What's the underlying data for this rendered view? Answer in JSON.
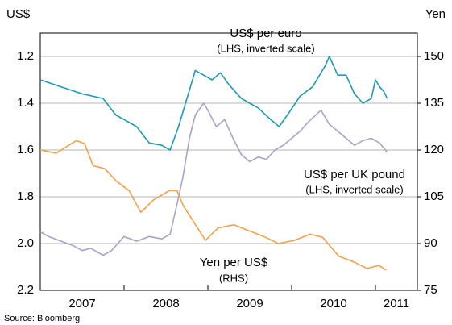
{
  "chart_data": {
    "type": "line",
    "y_axis_label": "US$",
    "y2_axis_label": "Yen",
    "source": "Source: Bloomberg",
    "xlim": [
      2007,
      2011.5
    ],
    "xticks": [
      2007,
      2008,
      2009,
      2010,
      2011
    ],
    "ylim": [
      1.1,
      2.2
    ],
    "y_inverted": true,
    "yticks": [
      1.2,
      1.4,
      1.6,
      1.8,
      {
        "value": 2,
        "label": "2.0"
      },
      2.2
    ],
    "y2lim": [
      75,
      157.5
    ],
    "y2ticks": [
      75,
      90,
      105,
      120,
      135,
      150
    ],
    "grid": true,
    "series": [
      {
        "name": "US$ per euro",
        "note": "(LHS, inverted scale)",
        "color": "#1a9bb5",
        "axis": "y",
        "x": [
          2007.0,
          2007.25,
          2007.5,
          2007.75,
          2007.9,
          2008.0,
          2008.15,
          2008.3,
          2008.45,
          2008.55,
          2008.65,
          2008.75,
          2008.85,
          2008.95,
          2009.05,
          2009.15,
          2009.25,
          2009.4,
          2009.5,
          2009.6,
          2009.75,
          2009.85,
          2009.95,
          2010.1,
          2010.25,
          2010.4,
          2010.45,
          2010.55,
          2010.65,
          2010.75,
          2010.85,
          2010.95,
          2011.0,
          2011.05,
          2011.1,
          2011.14
        ],
        "values": [
          1.3,
          1.33,
          1.36,
          1.38,
          1.45,
          1.47,
          1.5,
          1.57,
          1.58,
          1.6,
          1.5,
          1.38,
          1.26,
          1.28,
          1.3,
          1.27,
          1.32,
          1.38,
          1.4,
          1.42,
          1.47,
          1.5,
          1.45,
          1.37,
          1.33,
          1.24,
          1.2,
          1.28,
          1.28,
          1.36,
          1.4,
          1.38,
          1.3,
          1.33,
          1.35,
          1.38
        ]
      },
      {
        "name": "US$ per UK pound",
        "note": "(LHS, inverted scale)",
        "color": "#a9a3cc",
        "axis": "y",
        "x": [
          2007.0,
          2007.1,
          2007.25,
          2007.4,
          2007.5,
          2007.6,
          2007.75,
          2007.85,
          2008.0,
          2008.15,
          2008.3,
          2008.45,
          2008.55,
          2008.62,
          2008.7,
          2008.78,
          2008.85,
          2008.95,
          2009.0,
          2009.1,
          2009.2,
          2009.3,
          2009.4,
          2009.5,
          2009.6,
          2009.7,
          2009.8,
          2009.9,
          2010.0,
          2010.1,
          2010.2,
          2010.35,
          2010.45,
          2010.55,
          2010.65,
          2010.75,
          2010.85,
          2010.95,
          2011.05,
          2011.14
        ],
        "values": [
          1.95,
          1.97,
          1.99,
          2.01,
          2.03,
          2.02,
          2.05,
          2.03,
          1.97,
          1.99,
          1.97,
          1.98,
          1.96,
          1.85,
          1.72,
          1.55,
          1.45,
          1.4,
          1.43,
          1.5,
          1.47,
          1.55,
          1.62,
          1.65,
          1.63,
          1.64,
          1.6,
          1.58,
          1.55,
          1.52,
          1.48,
          1.43,
          1.49,
          1.52,
          1.55,
          1.58,
          1.56,
          1.55,
          1.57,
          1.61
        ]
      },
      {
        "name": "Yen per US$",
        "note": "(RHS)",
        "color": "#f3a24c",
        "axis": "y2",
        "x": [
          2007.0,
          2007.19,
          2007.43,
          2007.53,
          2007.63,
          2007.77,
          2007.91,
          2008.06,
          2008.2,
          2008.35,
          2008.54,
          2008.63,
          2008.71,
          2008.83,
          2008.97,
          2009.12,
          2009.31,
          2009.5,
          2009.69,
          2009.84,
          2010.03,
          2010.22,
          2010.37,
          2010.56,
          2010.75,
          2010.9,
          2011.04,
          2011.13
        ],
        "values": [
          120,
          119,
          123,
          122,
          115,
          114,
          110,
          107,
          100,
          104,
          107,
          107,
          102,
          97,
          91,
          95,
          96,
          94,
          92,
          90,
          91,
          93,
          92,
          86,
          84,
          82,
          83,
          81.5
        ]
      }
    ]
  }
}
